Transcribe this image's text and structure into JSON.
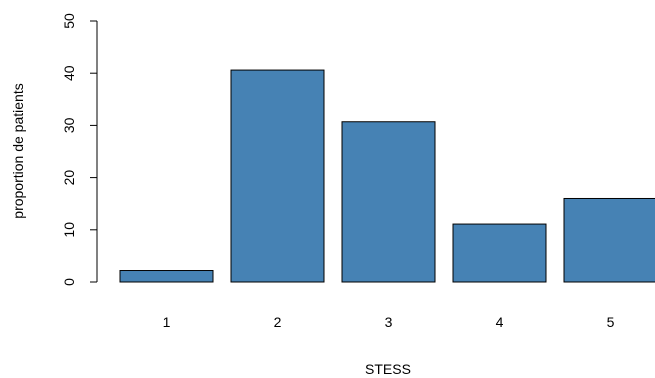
{
  "chart_data": {
    "type": "bar",
    "categories": [
      "1",
      "2",
      "3",
      "4",
      "5"
    ],
    "values": [
      2.2,
      40.6,
      30.7,
      11.1,
      16.0
    ],
    "xlabel": "STESS",
    "ylabel": "proportion de patients",
    "ylim": [
      0,
      50
    ],
    "yticks": [
      "0",
      "10",
      "20",
      "30",
      "40",
      "50"
    ],
    "bar_color": "#4682B4",
    "bar_border_color": "#000000",
    "grid": false,
    "legend": "none"
  }
}
